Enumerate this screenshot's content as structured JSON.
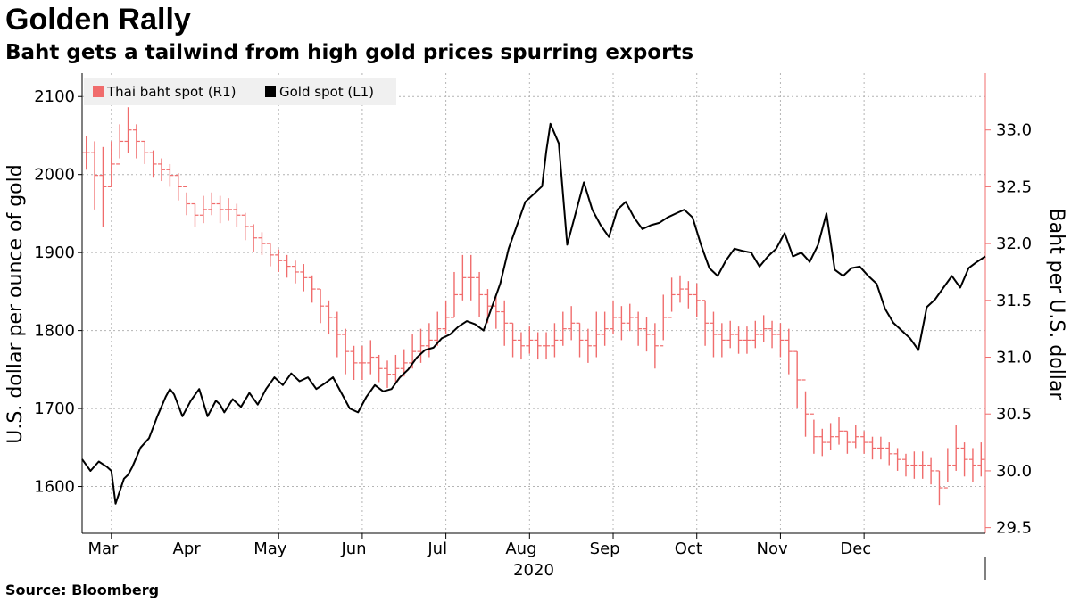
{
  "header": {
    "title": "Golden Rally",
    "subtitle": "Baht gets a tailwind from high gold prices spurring exports"
  },
  "footer": {
    "source": "Source: Bloomberg"
  },
  "colors": {
    "baht": "#f06c6c",
    "gold": "#000000",
    "grid": "#b4b4b4",
    "legend_bg": "#f0f0f0"
  },
  "chart_data": {
    "type": "line",
    "title": "Golden Rally",
    "subtitle": "Baht gets a tailwind from high gold prices spurring exports",
    "xlabel": "2020",
    "x_ticks": [
      "Mar",
      "Apr",
      "May",
      "Jun",
      "Jul",
      "Aug",
      "Sep",
      "Oct",
      "Nov",
      "Dec"
    ],
    "year_label": "2020",
    "y_left": {
      "label": "U.S. dollar per ounce of gold",
      "ylim": [
        1540,
        2130
      ],
      "ticks": [
        1600,
        1700,
        1800,
        1900,
        2000,
        2100
      ]
    },
    "y_right": {
      "label": "Baht per U.S. dollar",
      "ylim": [
        29.45,
        33.5
      ],
      "ticks": [
        29.5,
        30.0,
        30.5,
        31.0,
        31.5,
        32.0,
        32.5,
        33.0
      ]
    },
    "legend": {
      "position": "top-left",
      "entries": [
        "Thai baht spot (R1)",
        "Gold spot (L1)"
      ]
    },
    "xlim": [
      0,
      10.8
    ],
    "series": [
      {
        "name": "Gold spot (L1)",
        "axis": "left",
        "style": "line",
        "x": [
          0,
          0.1,
          0.2,
          0.3,
          0.35,
          0.4,
          0.5,
          0.55,
          0.6,
          0.7,
          0.8,
          0.9,
          1.0,
          1.05,
          1.1,
          1.2,
          1.3,
          1.4,
          1.5,
          1.6,
          1.65,
          1.7,
          1.8,
          1.9,
          2.0,
          2.1,
          2.2,
          2.3,
          2.4,
          2.5,
          2.6,
          2.7,
          2.8,
          2.9,
          3.0,
          3.1,
          3.2,
          3.3,
          3.4,
          3.5,
          3.6,
          3.7,
          3.8,
          3.9,
          4.0,
          4.1,
          4.2,
          4.3,
          4.4,
          4.5,
          4.6,
          4.7,
          4.8,
          4.9,
          5.0,
          5.1,
          5.2,
          5.3,
          5.4,
          5.45,
          5.5,
          5.55,
          5.6,
          5.7,
          5.8,
          5.9,
          6.0,
          6.1,
          6.2,
          6.3,
          6.4,
          6.5,
          6.6,
          6.7,
          6.8,
          6.9,
          7.0,
          7.1,
          7.2,
          7.3,
          7.4,
          7.5,
          7.6,
          7.7,
          7.8,
          7.9,
          8.0,
          8.1,
          8.2,
          8.3,
          8.4,
          8.5,
          8.6,
          8.7,
          8.8,
          8.9,
          9.0,
          9.1,
          9.2,
          9.3,
          9.4,
          9.5,
          9.6,
          9.7,
          9.8,
          9.9,
          10.0,
          10.1,
          10.2,
          10.3,
          10.4,
          10.5,
          10.6,
          10.7,
          10.8
        ],
        "values": [
          1635,
          1620,
          1632,
          1625,
          1620,
          1578,
          1610,
          1615,
          1625,
          1650,
          1662,
          1690,
          1715,
          1725,
          1718,
          1690,
          1710,
          1725,
          1690,
          1710,
          1705,
          1695,
          1712,
          1702,
          1720,
          1705,
          1725,
          1740,
          1730,
          1745,
          1735,
          1740,
          1725,
          1732,
          1740,
          1720,
          1700,
          1695,
          1715,
          1730,
          1722,
          1725,
          1740,
          1750,
          1765,
          1775,
          1778,
          1790,
          1795,
          1805,
          1812,
          1808,
          1800,
          1830,
          1860,
          1905,
          1935,
          1965,
          1975,
          1980,
          1985,
          2030,
          2065,
          2040,
          1910,
          1950,
          1990,
          1955,
          1935,
          1920,
          1955,
          1965,
          1945,
          1930,
          1935,
          1938,
          1945,
          1950,
          1955,
          1945,
          1910,
          1880,
          1870,
          1890,
          1905,
          1902,
          1900,
          1882,
          1895,
          1905,
          1925,
          1895,
          1900,
          1888,
          1910,
          1950,
          1878,
          1870,
          1880,
          1882,
          1870,
          1860,
          1828,
          1810,
          1800,
          1790,
          1775,
          1830,
          1840,
          1855,
          1870,
          1855,
          1880,
          1888,
          1895
        ]
      },
      {
        "name": "Thai baht spot (R1)",
        "axis": "right",
        "style": "ohlc",
        "x": [
          0.05,
          0.15,
          0.25,
          0.35,
          0.45,
          0.55,
          0.65,
          0.75,
          0.85,
          0.95,
          1.05,
          1.15,
          1.25,
          1.35,
          1.45,
          1.55,
          1.65,
          1.75,
          1.85,
          1.95,
          2.05,
          2.15,
          2.25,
          2.35,
          2.45,
          2.55,
          2.65,
          2.75,
          2.85,
          2.95,
          3.05,
          3.15,
          3.25,
          3.35,
          3.45,
          3.55,
          3.65,
          3.75,
          3.85,
          3.95,
          4.05,
          4.15,
          4.25,
          4.35,
          4.45,
          4.55,
          4.65,
          4.75,
          4.85,
          4.95,
          5.05,
          5.15,
          5.25,
          5.35,
          5.45,
          5.55,
          5.65,
          5.75,
          5.85,
          5.95,
          6.05,
          6.15,
          6.25,
          6.35,
          6.45,
          6.55,
          6.65,
          6.75,
          6.85,
          6.95,
          7.05,
          7.15,
          7.25,
          7.35,
          7.45,
          7.55,
          7.65,
          7.75,
          7.85,
          7.95,
          8.05,
          8.15,
          8.25,
          8.35,
          8.45,
          8.55,
          8.65,
          8.75,
          8.85,
          8.95,
          9.05,
          9.15,
          9.25,
          9.35,
          9.45,
          9.55,
          9.65,
          9.75,
          9.85,
          9.95,
          10.05,
          10.15,
          10.25,
          10.35,
          10.45,
          10.55,
          10.65,
          10.75
        ],
        "values": [
          32.8,
          32.6,
          32.5,
          32.7,
          32.9,
          33.0,
          32.9,
          32.8,
          32.7,
          32.65,
          32.6,
          32.5,
          32.35,
          32.25,
          32.3,
          32.35,
          32.3,
          32.3,
          32.25,
          32.15,
          32.05,
          32.0,
          31.9,
          31.85,
          31.8,
          31.75,
          31.7,
          31.6,
          31.45,
          31.35,
          31.2,
          31.05,
          30.95,
          30.95,
          31.0,
          30.9,
          30.85,
          30.9,
          30.95,
          31.05,
          31.1,
          31.15,
          31.25,
          31.35,
          31.55,
          31.7,
          31.7,
          31.55,
          31.45,
          31.4,
          31.3,
          31.15,
          31.1,
          31.15,
          31.1,
          31.1,
          31.15,
          31.25,
          31.3,
          31.15,
          31.1,
          31.2,
          31.25,
          31.35,
          31.3,
          31.35,
          31.25,
          31.2,
          31.1,
          31.35,
          31.55,
          31.6,
          31.55,
          31.5,
          31.3,
          31.2,
          31.15,
          31.2,
          31.15,
          31.15,
          31.2,
          31.25,
          31.2,
          31.15,
          31.05,
          30.8,
          30.5,
          30.3,
          30.25,
          30.3,
          30.35,
          30.25,
          30.3,
          30.25,
          30.2,
          30.2,
          30.15,
          30.1,
          30.05,
          30.05,
          30.05,
          30.0,
          29.85,
          30.05,
          30.2,
          30.1,
          30.05,
          30.1
        ],
        "range": [
          0.15,
          0.3,
          0.35,
          0.2,
          0.15,
          0.2,
          0.15,
          0.1,
          0.12,
          0.1,
          0.1,
          0.12,
          0.1,
          0.1,
          0.12,
          0.1,
          0.12,
          0.1,
          0.1,
          0.12,
          0.12,
          0.1,
          0.1,
          0.1,
          0.1,
          0.1,
          0.12,
          0.12,
          0.15,
          0.15,
          0.2,
          0.2,
          0.15,
          0.15,
          0.15,
          0.12,
          0.12,
          0.12,
          0.12,
          0.15,
          0.15,
          0.15,
          0.15,
          0.15,
          0.2,
          0.2,
          0.2,
          0.2,
          0.15,
          0.15,
          0.2,
          0.15,
          0.12,
          0.12,
          0.12,
          0.12,
          0.15,
          0.15,
          0.15,
          0.15,
          0.15,
          0.2,
          0.15,
          0.15,
          0.15,
          0.12,
          0.15,
          0.15,
          0.2,
          0.2,
          0.15,
          0.12,
          0.12,
          0.15,
          0.2,
          0.2,
          0.15,
          0.12,
          0.12,
          0.12,
          0.12,
          0.12,
          0.12,
          0.15,
          0.2,
          0.25,
          0.2,
          0.15,
          0.12,
          0.12,
          0.12,
          0.1,
          0.1,
          0.1,
          0.1,
          0.1,
          0.1,
          0.1,
          0.1,
          0.12,
          0.12,
          0.12,
          0.15,
          0.15,
          0.2,
          0.15,
          0.15,
          0.15
        ]
      }
    ]
  }
}
